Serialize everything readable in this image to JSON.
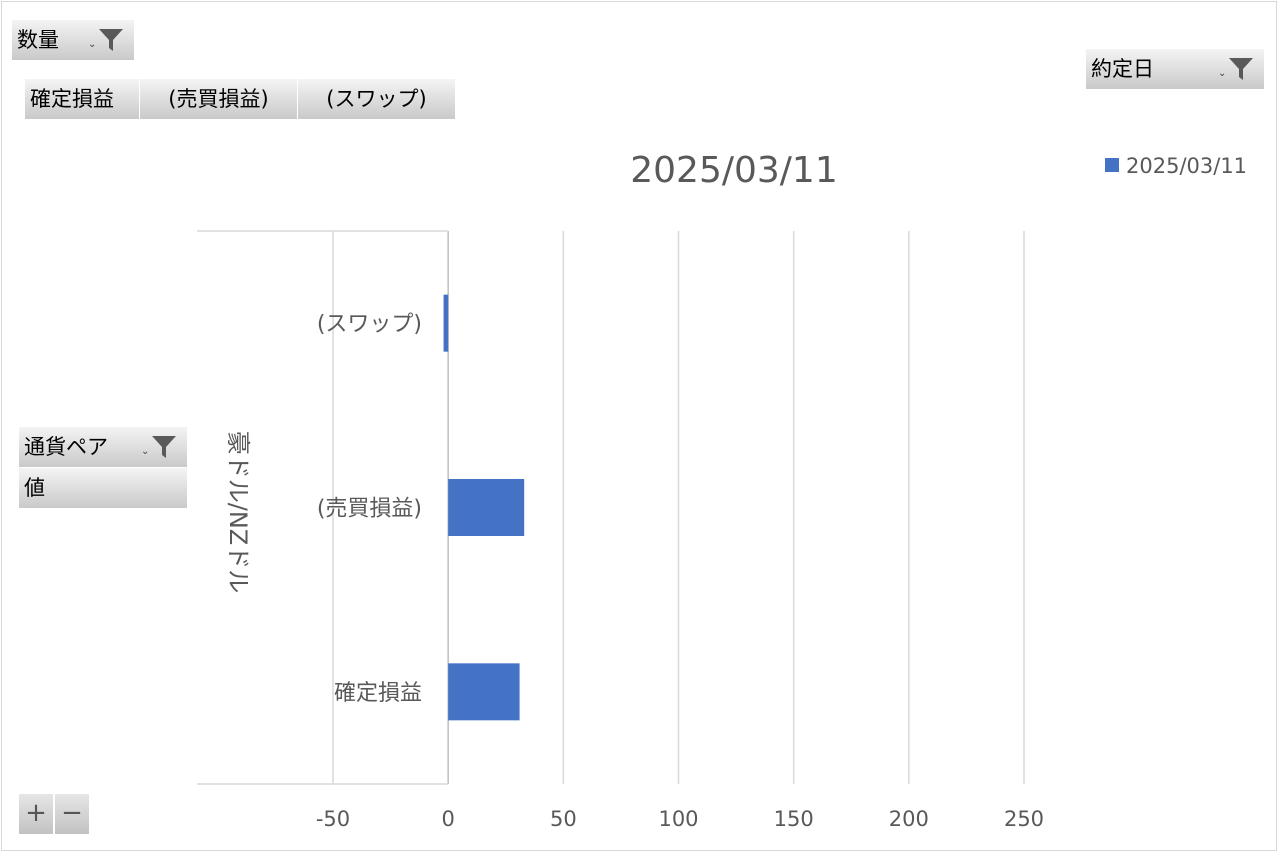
{
  "filters": {
    "quantity": {
      "label": "数量",
      "dropdown_glyph": "⌄",
      "icon": "filter-icon"
    },
    "trade_date": {
      "label": "約定日",
      "dropdown_glyph": "⌄",
      "icon": "filter-icon"
    },
    "currency_pair": {
      "label": "通貨ペア",
      "dropdown_glyph": "⌄",
      "icon": "filter-icon"
    },
    "values": {
      "label": "値"
    }
  },
  "value_fields": [
    "確定損益",
    "(売買損益)",
    "(スワップ)"
  ],
  "expand_collapse": {
    "expand_label": "+",
    "collapse_label": "−"
  },
  "colors": {
    "series": "#4472c4",
    "gridline": "#d9d9d9",
    "text": "#595959",
    "filter_bg": "#d0d0d0"
  },
  "chart_data": {
    "type": "bar",
    "orientation": "horizontal",
    "title": "2025/03/11",
    "group_label": "豪ドル/NZドル",
    "categories": [
      "(スワップ)",
      "(売買損益)",
      "確定損益"
    ],
    "series": [
      {
        "name": "2025/03/11",
        "values": [
          -2,
          33,
          31
        ]
      }
    ],
    "xlim": [
      -50,
      250
    ],
    "xticks": [
      -50,
      0,
      50,
      100,
      150,
      200,
      250
    ],
    "grid": true,
    "legend": "top-right"
  }
}
